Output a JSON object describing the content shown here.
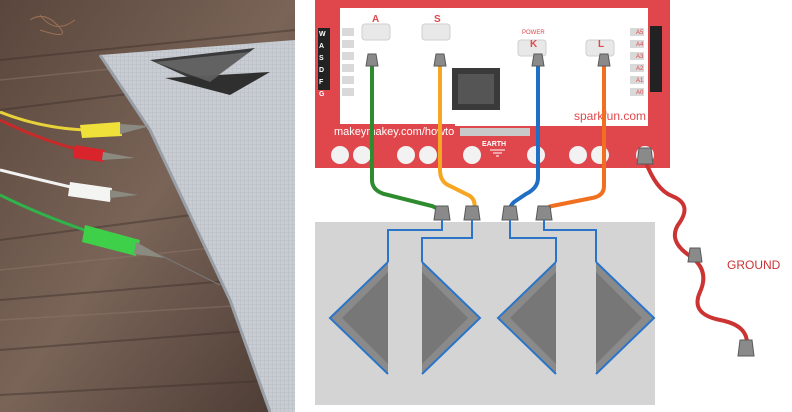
{
  "board": {
    "brand": "sparkfun.com",
    "url": "makeymakey.com/howto",
    "earth": "EARTH",
    "power": "POWER",
    "keys": [
      "A",
      "S",
      "K",
      "L"
    ],
    "left_header": [
      "W",
      "A",
      "S",
      "D",
      "F",
      "G"
    ],
    "right_header": [
      "A5",
      "A4",
      "A3",
      "A2",
      "A1",
      "A0"
    ]
  },
  "labels": {
    "ground": "GROUND"
  },
  "colors": {
    "board_red": "#e0474c",
    "wire_green": "#2e8b2e",
    "wire_orange": "#f5a623",
    "wire_blue": "#1f6fc5",
    "wire_dark_orange": "#f07020",
    "wire_red": "#cc3333",
    "trace_blue": "#2a74c9",
    "pad_gray": "#d4d4d4"
  }
}
